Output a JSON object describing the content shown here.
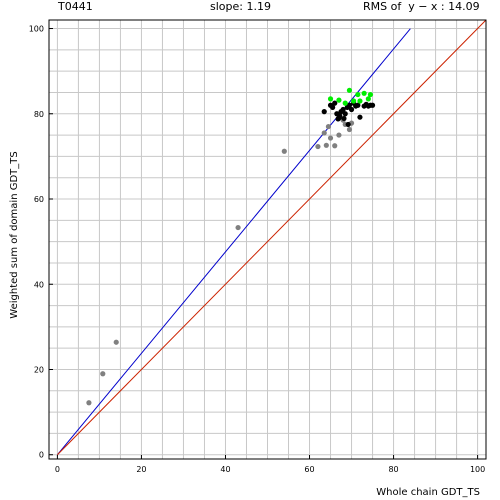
{
  "header": {
    "target_id": "T0441",
    "slope_text": "slope: 1.19",
    "rms_text": "RMS of  y − x : 14.09"
  },
  "colors": {
    "grid": "#c8c8c8",
    "frame": "#000000",
    "fit_line": "#0000cc",
    "identity_line": "#cc2200",
    "gray_points": "#808080",
    "black_points": "#000000",
    "green_points": "#00ee00"
  },
  "chart_data": {
    "type": "scatter",
    "title": "",
    "xlabel": "Whole chain GDT_TS",
    "ylabel": "Weighted sum of domain GDT_TS",
    "xlim": [
      -2,
      102
    ],
    "ylim": [
      -1,
      102
    ],
    "x_ticks": [
      0,
      20,
      40,
      60,
      80,
      100
    ],
    "y_ticks": [
      0,
      20,
      40,
      60,
      80,
      100
    ],
    "x_tick_labels": [
      "0",
      "20",
      "40",
      "60",
      "80",
      "100"
    ],
    "y_tick_labels": [
      "0",
      "20",
      "40",
      "60",
      "80",
      "100"
    ],
    "grid": true,
    "grid_step": 5,
    "lines": [
      {
        "kind": "fit",
        "slope": 1.19,
        "x_range": [
          0,
          84
        ]
      },
      {
        "kind": "identity",
        "slope": 1.0,
        "x_range": [
          0,
          102
        ]
      }
    ],
    "series": [
      {
        "color": "gray",
        "points": [
          [
            7.5,
            12.2
          ],
          [
            10.8,
            19.0
          ],
          [
            14,
            26.4
          ],
          [
            43,
            53.3
          ],
          [
            54,
            71.2
          ],
          [
            62,
            72.3
          ],
          [
            63.5,
            75.5
          ],
          [
            64,
            72.6
          ],
          [
            64.5,
            77.0
          ],
          [
            65,
            74.3
          ],
          [
            66,
            72.5
          ],
          [
            67,
            75.0
          ],
          [
            68,
            78.5
          ],
          [
            68.5,
            77.5
          ],
          [
            69.5,
            76.3
          ],
          [
            70,
            77.8
          ]
        ]
      },
      {
        "color": "black",
        "points": [
          [
            63.5,
            80.5
          ],
          [
            65,
            82
          ],
          [
            65.5,
            81.5
          ],
          [
            66,
            82.5
          ],
          [
            66.5,
            80
          ],
          [
            67,
            79
          ],
          [
            67.2,
            79.5
          ],
          [
            67.5,
            80.5
          ],
          [
            68,
            81
          ],
          [
            68.5,
            80
          ],
          [
            69,
            81.5
          ],
          [
            69.5,
            82
          ],
          [
            70,
            81
          ],
          [
            70.5,
            82.5
          ],
          [
            71,
            81.8
          ],
          [
            71.5,
            82
          ],
          [
            72,
            79.2
          ],
          [
            73,
            81.8
          ],
          [
            73.5,
            82.2
          ],
          [
            74,
            81.8
          ],
          [
            74.5,
            82.0
          ],
          [
            75,
            82.0
          ],
          [
            66.8,
            78.8
          ],
          [
            68.2,
            78.9
          ],
          [
            69.2,
            77.5
          ]
        ]
      },
      {
        "color": "green",
        "points": [
          [
            65,
            83.5
          ],
          [
            67,
            83.2
          ],
          [
            69.5,
            85.5
          ],
          [
            70.5,
            83.0
          ],
          [
            71.5,
            84.5
          ],
          [
            72,
            83.0
          ],
          [
            73,
            84.8
          ],
          [
            74,
            83.5
          ],
          [
            74.5,
            84.5
          ],
          [
            68.5,
            82.5
          ]
        ]
      }
    ]
  }
}
